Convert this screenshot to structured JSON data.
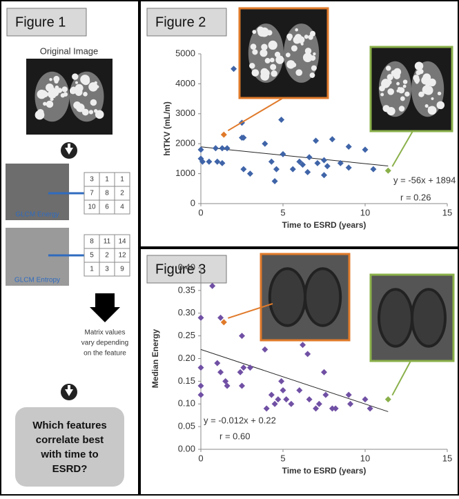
{
  "figure1": {
    "title": "Figure 1",
    "image_caption": "Original Image",
    "matrix_energy": [
      [
        3,
        1,
        1
      ],
      [
        7,
        8,
        2
      ],
      [
        10,
        6,
        4
      ]
    ],
    "energy_label": "GLCM Energy",
    "matrix_entropy": [
      [
        8,
        11,
        14
      ],
      [
        5,
        2,
        12
      ],
      [
        1,
        3,
        9
      ]
    ],
    "entropy_label": "GLCM Entropy",
    "note": [
      "Matrix values",
      "vary depending",
      "on the feature"
    ],
    "question": [
      "Which features",
      "correlate best",
      "with time to",
      "ESRD?"
    ]
  },
  "chart_data": [
    {
      "type": "scatter",
      "title": "Figure 2",
      "xlabel": "Time to ESRD (years)",
      "ylabel": "htTKV (mL/m)",
      "xlim": [
        0,
        15
      ],
      "xticks": [
        0,
        5,
        10,
        15
      ],
      "ylim": [
        0,
        5000
      ],
      "yticks": [
        0,
        1000,
        2000,
        3000,
        4000,
        5000
      ],
      "series": [
        {
          "color": "#3f64a8",
          "x": [
            0,
            0,
            0.1,
            0.5,
            0.9,
            1.0,
            1.3,
            1.3,
            1.6,
            2.0,
            2.5,
            2.5,
            2.6,
            2.6,
            3.0,
            3.9,
            4.3,
            4.5,
            4.6,
            4.9,
            5.0,
            5.6,
            6.0,
            6.2,
            6.5,
            6.6,
            7.0,
            7.1,
            7.5,
            7.5,
            7.7,
            8.0,
            8.5,
            9.0,
            9.0,
            10.0,
            10.5
          ],
          "values": [
            1800,
            1500,
            1400,
            1400,
            1850,
            1400,
            1850,
            1350,
            1850,
            4500,
            2700,
            2200,
            2200,
            1150,
            1000,
            2000,
            1400,
            750,
            1150,
            2800,
            1650,
            1150,
            1400,
            1300,
            1050,
            1550,
            2100,
            1350,
            1450,
            950,
            1250,
            2150,
            1350,
            1900,
            1200,
            1800,
            1150
          ]
        },
        {
          "color": "#e07a2a",
          "x": [
            1.4
          ],
          "values": [
            2300
          ]
        },
        {
          "color": "#8ab04a",
          "x": [
            11.4
          ],
          "values": [
            1100
          ]
        }
      ],
      "trendline": {
        "x": [
          0,
          11.4
        ],
        "values": [
          1894,
          1256
        ]
      },
      "annotations": [
        "y = -56x + 1894",
        "r = 0.26"
      ]
    },
    {
      "type": "scatter",
      "title": "Figure 3",
      "xlabel": "Time to ESRD (years)",
      "ylabel": "Median Energy",
      "xlim": [
        0,
        15
      ],
      "xticks": [
        0,
        5,
        10,
        15
      ],
      "ylim": [
        0,
        0.4
      ],
      "yticks": [
        {
          "value": 0,
          "label": "0.00"
        },
        {
          "value": 0.05,
          "label": "0.05"
        },
        {
          "value": 0.1,
          "label": "0.10"
        },
        {
          "value": 0.15,
          "label": "0.15"
        },
        {
          "value": 0.2,
          "label": "0.20"
        },
        {
          "value": 0.25,
          "label": "0.25"
        },
        {
          "value": 0.3,
          "label": "0.30"
        },
        {
          "value": 0.35,
          "label": "0.35"
        },
        {
          "value": 0.4,
          "label": "0.40"
        }
      ],
      "series": [
        {
          "color": "#7050a4",
          "x": [
            0,
            0,
            0,
            0,
            0.7,
            1.0,
            1.2,
            1.2,
            1.5,
            1.6,
            2.5,
            2.4,
            2.6,
            2.5,
            3.0,
            3.9,
            4.0,
            4.3,
            4.5,
            4.7,
            4.9,
            5.0,
            5.2,
            5.5,
            6.0,
            6.2,
            6.5,
            6.6,
            7.0,
            7.2,
            7.5,
            7.6,
            8.0,
            8.2,
            9.0,
            9.1,
            10.0,
            10.3
          ],
          "values": [
            0.29,
            0.18,
            0.14,
            0.12,
            0.36,
            0.19,
            0.29,
            0.17,
            0.15,
            0.14,
            0.25,
            0.17,
            0.18,
            0.14,
            0.18,
            0.22,
            0.09,
            0.12,
            0.1,
            0.11,
            0.15,
            0.13,
            0.11,
            0.1,
            0.13,
            0.23,
            0.21,
            0.11,
            0.09,
            0.1,
            0.17,
            0.12,
            0.09,
            0.09,
            0.12,
            0.1,
            0.11,
            0.09
          ]
        },
        {
          "color": "#e07a2a",
          "x": [
            1.4
          ],
          "values": [
            0.28
          ]
        },
        {
          "color": "#8ab04a",
          "x": [
            11.4
          ],
          "values": [
            0.11
          ]
        }
      ],
      "trendline": {
        "x": [
          0,
          11.4
        ],
        "values": [
          0.22,
          0.083
        ]
      },
      "annotations": [
        "y = -0.012x + 0.22",
        "r = 0.60"
      ]
    }
  ]
}
